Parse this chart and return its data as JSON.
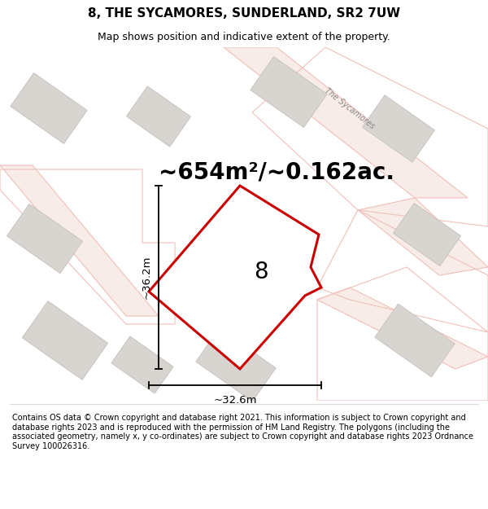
{
  "title": "8, THE SYCAMORES, SUNDERLAND, SR2 7UW",
  "subtitle": "Map shows position and indicative extent of the property.",
  "area_label": "~654m²/~0.162ac.",
  "plot_number": "8",
  "width_label": "~32.6m",
  "height_label": "~36.2m",
  "footer": "Contains OS data © Crown copyright and database right 2021. This information is subject to Crown copyright and database rights 2023 and is reproduced with the permission of HM Land Registry. The polygons (including the associated geometry, namely x, y co-ordinates) are subject to Crown copyright and database rights 2023 Ordnance Survey 100026316.",
  "background_color": "#ffffff",
  "map_bg_color": "#f7f4f2",
  "plot_fill": "#ffffff",
  "plot_edge_color": "#cc0000",
  "building_fill": "#d8d4d0",
  "building_edge": "#c8c4c0",
  "road_outline_color": "#f0c0b8",
  "road_label_color": "#888888",
  "title_fontsize": 11,
  "subtitle_fontsize": 9,
  "area_fontsize": 20,
  "plot_number_fontsize": 20,
  "dim_fontsize": 9.5,
  "footer_fontsize": 7.0
}
